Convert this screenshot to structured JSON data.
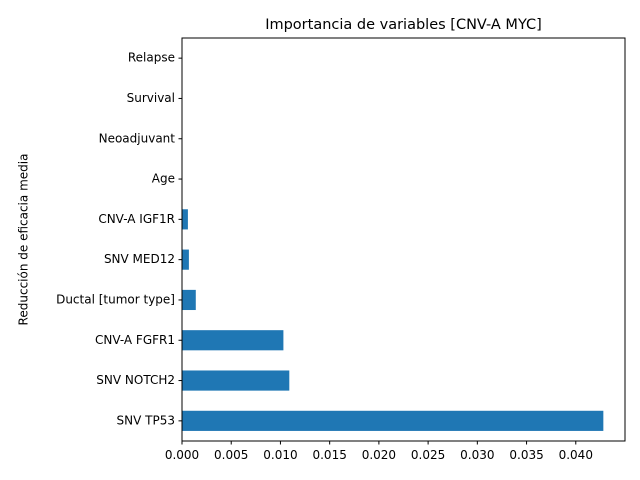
{
  "chart_data": {
    "type": "bar",
    "orientation": "horizontal",
    "title": "Importancia de variables [CNV-A MYC]",
    "xlabel": "",
    "ylabel": "Reducción de eficacia media",
    "categories": [
      "SNV TP53",
      "SNV NOTCH2",
      "CNV-A FGFR1",
      "Ductal [tumor type]",
      "SNV MED12",
      "CNV-A IGF1R",
      "Age",
      "Neoadjuvant",
      "Survival",
      "Relapse"
    ],
    "values": [
      0.0428,
      0.0109,
      0.0103,
      0.0014,
      0.0007,
      0.0006,
      0.0,
      0.0,
      0.0,
      0.0
    ],
    "xlim": [
      0.0,
      0.045
    ],
    "xticks": [
      "0.000",
      "0.005",
      "0.010",
      "0.015",
      "0.020",
      "0.025",
      "0.030",
      "0.035",
      "0.040"
    ],
    "grid": false,
    "legend": "none",
    "bar_color": "#1f77b4"
  }
}
